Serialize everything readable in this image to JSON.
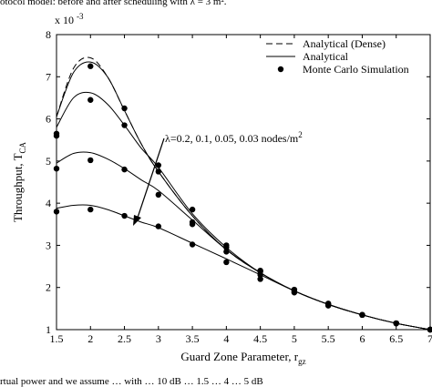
{
  "captions": {
    "top": "otocol model: before and after scheduling with λ = 3 m².",
    "bottom": "rtual power and we assume … with … 10 dB … 1.5 … 4 … 5 dB"
  },
  "chart_data": {
    "type": "line",
    "title": "",
    "xlabel": "Guard Zone Parameter, r",
    "xlabel_sub": "gz",
    "ylabel": "Throughput, T",
    "ylabel_sub": "CA",
    "y_multiplier": "x 10",
    "y_multiplier_exp": "-3",
    "xlim": [
      1.5,
      7
    ],
    "ylim": [
      1,
      8
    ],
    "x_ticks": [
      1.5,
      2,
      2.5,
      3,
      3.5,
      4,
      4.5,
      5,
      5.5,
      6,
      6.5,
      7
    ],
    "y_ticks": [
      1,
      2,
      3,
      4,
      5,
      6,
      7,
      8
    ],
    "x_tick_labels": [
      "1.5",
      "2",
      "2.5",
      "3",
      "3.5",
      "4",
      "4.5",
      "5",
      "5.5",
      "6",
      "6.5",
      "7"
    ],
    "y_tick_labels": [
      "1",
      "2",
      "3",
      "4",
      "5",
      "6",
      "7",
      "8"
    ],
    "legend_position": "top-right",
    "legend": [
      "Analytical (Dense)",
      "Analytical",
      "Monte Carlo Simulation"
    ],
    "annotation": "λ=0.2, 0.1, 0.05, 0.03 nodes/m",
    "annotation_sup": "2",
    "series": [
      {
        "style": "dense",
        "x": [
          1.5,
          1.75,
          2.0,
          2.25,
          2.5,
          2.75,
          3.0,
          3.5,
          4.0,
          4.5,
          5.0,
          5.5,
          6.0,
          6.5,
          7.0
        ],
        "y": [
          6.05,
          7.2,
          7.45,
          7.0,
          6.2,
          5.4,
          4.75,
          3.7,
          2.9,
          2.35,
          1.92,
          1.6,
          1.35,
          1.15,
          1.0
        ]
      },
      {
        "style": "analytical",
        "x": [
          1.5,
          1.75,
          2.0,
          2.25,
          2.5,
          2.75,
          3.0,
          3.5,
          4.0,
          4.5,
          5.0,
          5.5,
          6.0,
          6.5,
          7.0
        ],
        "y": [
          6.05,
          7.1,
          7.35,
          7.0,
          6.2,
          5.4,
          4.75,
          3.7,
          2.9,
          2.35,
          1.92,
          1.6,
          1.35,
          1.15,
          1.0
        ]
      },
      {
        "style": "analytical",
        "x": [
          1.5,
          1.75,
          2.0,
          2.25,
          2.5,
          2.75,
          3.0,
          3.5,
          4.0,
          4.5,
          5.0,
          5.5,
          6.0,
          6.5,
          7.0
        ],
        "y": [
          5.8,
          6.5,
          6.62,
          6.35,
          5.85,
          5.3,
          4.85,
          3.75,
          2.95,
          2.35,
          1.92,
          1.6,
          1.35,
          1.15,
          1.0
        ]
      },
      {
        "style": "analytical",
        "x": [
          1.5,
          1.75,
          2.0,
          2.25,
          2.5,
          2.75,
          3.0,
          3.5,
          4.0,
          4.5,
          5.0,
          5.5,
          6.0,
          6.5,
          7.0
        ],
        "y": [
          4.95,
          5.18,
          5.2,
          5.05,
          4.82,
          4.55,
          4.3,
          3.6,
          2.9,
          2.35,
          1.92,
          1.6,
          1.35,
          1.15,
          1.0
        ]
      },
      {
        "style": "analytical",
        "x": [
          1.5,
          1.75,
          2.0,
          2.25,
          2.5,
          2.75,
          3.0,
          3.5,
          4.0,
          4.5,
          5.0,
          5.5,
          6.0,
          6.5,
          7.0
        ],
        "y": [
          3.88,
          3.95,
          3.95,
          3.85,
          3.7,
          3.55,
          3.42,
          3.05,
          2.68,
          2.3,
          1.92,
          1.6,
          1.35,
          1.15,
          1.0
        ]
      },
      {
        "style": "markers",
        "x": [
          1.5,
          2,
          2.5,
          3,
          3.5,
          4,
          4.5,
          5,
          5.5,
          6,
          6.5,
          7
        ],
        "y": [
          5.65,
          7.25,
          6.25,
          4.9,
          3.85,
          3.0,
          2.4,
          1.95,
          1.62,
          1.35,
          1.15,
          1.0
        ]
      },
      {
        "style": "markers",
        "x": [
          1.5,
          2,
          2.5,
          3,
          3.5,
          4,
          4.5,
          5,
          5.5,
          6,
          6.5,
          7
        ],
        "y": [
          5.6,
          6.45,
          5.85,
          4.75,
          3.55,
          2.95,
          2.38,
          1.93,
          1.6,
          1.35,
          1.15,
          1.0
        ]
      },
      {
        "style": "markers",
        "x": [
          1.5,
          2,
          2.5,
          3,
          3.5,
          4,
          4.5,
          5,
          5.5,
          6,
          6.5,
          7
        ],
        "y": [
          4.82,
          5.02,
          4.8,
          4.2,
          3.5,
          2.85,
          2.3,
          1.9,
          1.58,
          1.35,
          1.15,
          1.0
        ]
      },
      {
        "style": "markers",
        "x": [
          1.5,
          2,
          2.5,
          3,
          3.5,
          4,
          4.5,
          5,
          5.5,
          6,
          6.5,
          7
        ],
        "y": [
          3.8,
          3.85,
          3.7,
          3.45,
          3.02,
          2.6,
          2.2,
          1.88,
          1.57,
          1.35,
          1.15,
          1.0
        ]
      }
    ]
  }
}
